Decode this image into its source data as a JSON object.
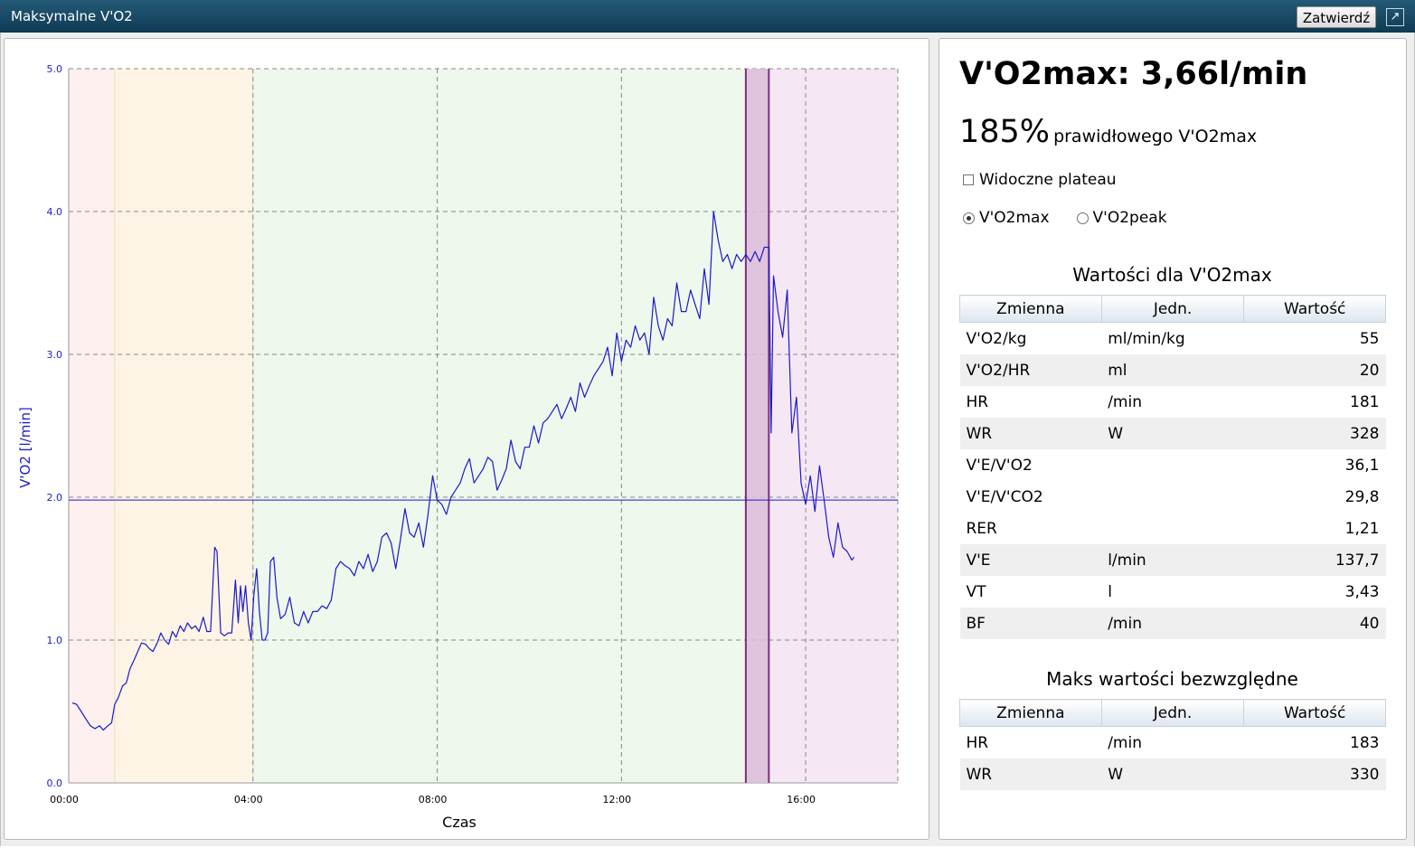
{
  "window": {
    "title": "Maksymalne V'O2",
    "confirm_label": "Zatwierdź",
    "expand_icon": "↗"
  },
  "summary": {
    "heading": "V'O2max: 3,66l/min",
    "percent_value": "185%",
    "percent_text": "prawidłowego V'O2max",
    "plateau_label": "Widoczne plateau",
    "plateau_checked": false,
    "radio_options": [
      "V'O2max",
      "V'O2peak"
    ],
    "radio_selected": "V'O2max"
  },
  "table_values": {
    "title": "Wartości dla V'O2max",
    "headers": [
      "Zmienna",
      "Jedn.",
      "Wartość"
    ],
    "rows": [
      {
        "variable": "V'O2/kg",
        "unit": "ml/min/kg",
        "value": "55"
      },
      {
        "variable": "V'O2/HR",
        "unit": "ml",
        "value": "20"
      },
      {
        "variable": "HR",
        "unit": "/min",
        "value": "181"
      },
      {
        "variable": "WR",
        "unit": "W",
        "value": "328"
      },
      {
        "variable": "V'E/V'O2",
        "unit": "",
        "value": "36,1"
      },
      {
        "variable": "V'E/V'CO2",
        "unit": "",
        "value": "29,8"
      },
      {
        "variable": "RER",
        "unit": "",
        "value": "1,21"
      },
      {
        "variable": "V'E",
        "unit": "l/min",
        "value": "137,7"
      },
      {
        "variable": "VT",
        "unit": "l",
        "value": "3,43"
      },
      {
        "variable": "BF",
        "unit": "/min",
        "value": "40"
      }
    ]
  },
  "table_max": {
    "title": "Maks wartości bezwzględne",
    "headers": [
      "Zmienna",
      "Jedn.",
      "Wartość"
    ],
    "rows": [
      {
        "variable": "HR",
        "unit": "/min",
        "value": "183"
      },
      {
        "variable": "WR",
        "unit": "W",
        "value": "330"
      }
    ]
  },
  "chart_data": {
    "type": "line",
    "xlabel": "Czas",
    "ylabel": "V'O2 [l/min]",
    "x_range_minutes": [
      0,
      18
    ],
    "ylim": [
      0.0,
      5.0
    ],
    "y_ticks": [
      "0.0",
      "1.0",
      "2.0",
      "3.0",
      "4.0",
      "5.0"
    ],
    "x_ticks": [
      "00:00",
      "04:00",
      "08:00",
      "12:00",
      "16:00"
    ],
    "grid": true,
    "reference_line": 1.98,
    "colors": {
      "line": "#1a1acc",
      "axis_text": "#2020c8",
      "grid": "#888888",
      "selection": "#7b2f7e"
    },
    "phases": [
      {
        "start": 0,
        "end": 1.0,
        "color": "#fdf0ef",
        "border": "#f0c8c8"
      },
      {
        "start": 1.0,
        "end": 4.0,
        "color": "#fdf4e6",
        "border": "#f0dcb0"
      },
      {
        "start": 4.0,
        "end": 14.7,
        "color": "#eef8ec",
        "border": "#cfe5c8"
      },
      {
        "start": 14.7,
        "end": 18.0,
        "color": "#f6e7f5",
        "border": "#e2c8e0"
      }
    ],
    "selection_window": [
      14.7,
      15.2
    ],
    "series": [
      {
        "values": [
          [
            0.08,
            0.56
          ],
          [
            0.17,
            0.55
          ],
          [
            0.27,
            0.5
          ],
          [
            0.37,
            0.45
          ],
          [
            0.47,
            0.4
          ],
          [
            0.57,
            0.38
          ],
          [
            0.67,
            0.4
          ],
          [
            0.75,
            0.37
          ],
          [
            0.85,
            0.4
          ],
          [
            0.93,
            0.42
          ],
          [
            1.0,
            0.55
          ],
          [
            1.08,
            0.6
          ],
          [
            1.17,
            0.68
          ],
          [
            1.25,
            0.7
          ],
          [
            1.33,
            0.8
          ],
          [
            1.42,
            0.86
          ],
          [
            1.5,
            0.92
          ],
          [
            1.58,
            0.98
          ],
          [
            1.67,
            0.97
          ],
          [
            1.75,
            0.94
          ],
          [
            1.83,
            0.92
          ],
          [
            1.92,
            0.98
          ],
          [
            2.0,
            1.05
          ],
          [
            2.08,
            1.0
          ],
          [
            2.17,
            0.97
          ],
          [
            2.25,
            1.06
          ],
          [
            2.33,
            1.02
          ],
          [
            2.42,
            1.1
          ],
          [
            2.5,
            1.06
          ],
          [
            2.58,
            1.12
          ],
          [
            2.67,
            1.08
          ],
          [
            2.75,
            1.1
          ],
          [
            2.83,
            1.06
          ],
          [
            2.92,
            1.16
          ],
          [
            3.0,
            1.06
          ],
          [
            3.08,
            1.06
          ],
          [
            3.17,
            1.65
          ],
          [
            3.22,
            1.62
          ],
          [
            3.3,
            1.05
          ],
          [
            3.38,
            1.03
          ],
          [
            3.46,
            1.05
          ],
          [
            3.54,
            1.05
          ],
          [
            3.62,
            1.42
          ],
          [
            3.68,
            1.12
          ],
          [
            3.73,
            1.38
          ],
          [
            3.78,
            1.2
          ],
          [
            3.84,
            1.38
          ],
          [
            3.9,
            1.12
          ],
          [
            3.96,
            1.0
          ],
          [
            4.02,
            1.32
          ],
          [
            4.08,
            1.5
          ],
          [
            4.14,
            1.2
          ],
          [
            4.2,
            1.0
          ],
          [
            4.26,
            1.0
          ],
          [
            4.32,
            1.05
          ],
          [
            4.38,
            1.55
          ],
          [
            4.45,
            1.58
          ],
          [
            4.52,
            1.3
          ],
          [
            4.6,
            1.15
          ],
          [
            4.7,
            1.18
          ],
          [
            4.8,
            1.3
          ],
          [
            4.9,
            1.12
          ],
          [
            5.0,
            1.1
          ],
          [
            5.1,
            1.2
          ],
          [
            5.2,
            1.12
          ],
          [
            5.3,
            1.2
          ],
          [
            5.4,
            1.2
          ],
          [
            5.5,
            1.24
          ],
          [
            5.6,
            1.22
          ],
          [
            5.7,
            1.28
          ],
          [
            5.8,
            1.5
          ],
          [
            5.9,
            1.55
          ],
          [
            6.0,
            1.52
          ],
          [
            6.1,
            1.5
          ],
          [
            6.2,
            1.45
          ],
          [
            6.3,
            1.55
          ],
          [
            6.4,
            1.5
          ],
          [
            6.5,
            1.6
          ],
          [
            6.6,
            1.48
          ],
          [
            6.7,
            1.55
          ],
          [
            6.8,
            1.72
          ],
          [
            6.9,
            1.75
          ],
          [
            7.0,
            1.68
          ],
          [
            7.1,
            1.5
          ],
          [
            7.2,
            1.7
          ],
          [
            7.3,
            1.92
          ],
          [
            7.4,
            1.75
          ],
          [
            7.5,
            1.72
          ],
          [
            7.6,
            1.82
          ],
          [
            7.7,
            1.65
          ],
          [
            7.8,
            1.88
          ],
          [
            7.9,
            2.15
          ],
          [
            8.0,
            1.98
          ],
          [
            8.1,
            1.95
          ],
          [
            8.2,
            1.88
          ],
          [
            8.3,
            2.0
          ],
          [
            8.4,
            2.05
          ],
          [
            8.5,
            2.1
          ],
          [
            8.6,
            2.2
          ],
          [
            8.7,
            2.27
          ],
          [
            8.8,
            2.1
          ],
          [
            8.9,
            2.15
          ],
          [
            9.0,
            2.2
          ],
          [
            9.1,
            2.28
          ],
          [
            9.2,
            2.25
          ],
          [
            9.3,
            2.05
          ],
          [
            9.4,
            2.12
          ],
          [
            9.5,
            2.2
          ],
          [
            9.6,
            2.4
          ],
          [
            9.7,
            2.25
          ],
          [
            9.8,
            2.2
          ],
          [
            9.9,
            2.35
          ],
          [
            10.0,
            2.35
          ],
          [
            10.1,
            2.5
          ],
          [
            10.2,
            2.38
          ],
          [
            10.3,
            2.52
          ],
          [
            10.4,
            2.55
          ],
          [
            10.5,
            2.6
          ],
          [
            10.6,
            2.65
          ],
          [
            10.7,
            2.55
          ],
          [
            10.8,
            2.62
          ],
          [
            10.9,
            2.7
          ],
          [
            11.0,
            2.6
          ],
          [
            11.1,
            2.8
          ],
          [
            11.2,
            2.7
          ],
          [
            11.3,
            2.78
          ],
          [
            11.4,
            2.85
          ],
          [
            11.5,
            2.9
          ],
          [
            11.6,
            2.95
          ],
          [
            11.7,
            3.05
          ],
          [
            11.8,
            2.85
          ],
          [
            11.9,
            3.15
          ],
          [
            12.0,
            2.95
          ],
          [
            12.1,
            3.1
          ],
          [
            12.2,
            3.05
          ],
          [
            12.3,
            3.2
          ],
          [
            12.4,
            3.1
          ],
          [
            12.5,
            3.15
          ],
          [
            12.6,
            3.0
          ],
          [
            12.7,
            3.4
          ],
          [
            12.8,
            3.2
          ],
          [
            12.9,
            3.1
          ],
          [
            13.0,
            3.25
          ],
          [
            13.1,
            3.2
          ],
          [
            13.2,
            3.5
          ],
          [
            13.3,
            3.3
          ],
          [
            13.4,
            3.3
          ],
          [
            13.5,
            3.45
          ],
          [
            13.6,
            3.35
          ],
          [
            13.7,
            3.25
          ],
          [
            13.8,
            3.6
          ],
          [
            13.9,
            3.35
          ],
          [
            14.0,
            4.0
          ],
          [
            14.1,
            3.8
          ],
          [
            14.2,
            3.65
          ],
          [
            14.3,
            3.7
          ],
          [
            14.4,
            3.6
          ],
          [
            14.5,
            3.7
          ],
          [
            14.6,
            3.65
          ],
          [
            14.7,
            3.7
          ],
          [
            14.8,
            3.65
          ],
          [
            14.9,
            3.72
          ],
          [
            15.0,
            3.65
          ],
          [
            15.1,
            3.75
          ],
          [
            15.2,
            3.75
          ],
          [
            15.25,
            2.45
          ],
          [
            15.3,
            3.55
          ],
          [
            15.4,
            3.3
          ],
          [
            15.5,
            3.12
          ],
          [
            15.6,
            3.45
          ],
          [
            15.7,
            2.45
          ],
          [
            15.8,
            2.7
          ],
          [
            15.9,
            2.1
          ],
          [
            16.0,
            1.95
          ],
          [
            16.1,
            2.15
          ],
          [
            16.2,
            1.9
          ],
          [
            16.3,
            2.22
          ],
          [
            16.4,
            1.98
          ],
          [
            16.5,
            1.72
          ],
          [
            16.6,
            1.58
          ],
          [
            16.7,
            1.82
          ],
          [
            16.8,
            1.65
          ],
          [
            16.9,
            1.62
          ],
          [
            17.0,
            1.56
          ],
          [
            17.05,
            1.58
          ]
        ]
      }
    ]
  }
}
